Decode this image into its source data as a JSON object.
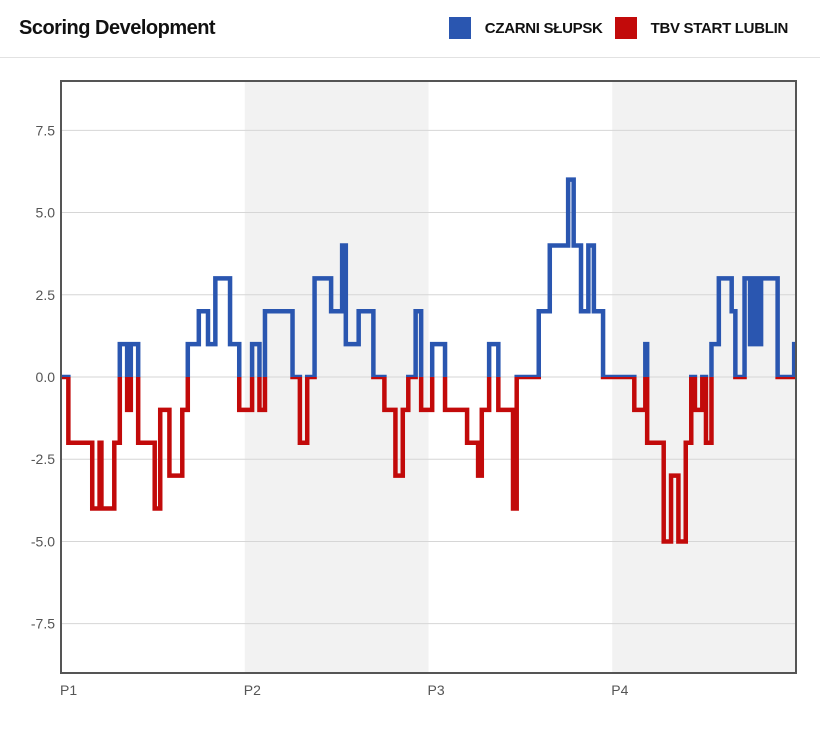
{
  "header": {
    "title": "Scoring Development",
    "legend": [
      {
        "label": "CZARNI SŁUPSK",
        "color": "#2a56b0"
      },
      {
        "label": "TBV START LUBLIN",
        "color": "#c20a0a"
      }
    ]
  },
  "chart_data": {
    "type": "line",
    "title": "Scoring Development",
    "xlabel": "",
    "ylabel": "",
    "y_ticks": [
      7.5,
      5.0,
      2.5,
      0.0,
      -2.5,
      -5.0,
      -7.5
    ],
    "y_tick_labels": [
      "7.5",
      "5.0",
      "2.5",
      "0.0",
      "-2.5",
      "-5.0",
      "-7.5"
    ],
    "ylim": [
      -9,
      9
    ],
    "xlim": [
      0,
      40
    ],
    "x_unit": "minutes",
    "periods": [
      {
        "label": "P1",
        "start": 0
      },
      {
        "label": "P2",
        "start": 10
      },
      {
        "label": "P3",
        "start": 20
      },
      {
        "label": "P4",
        "start": 30
      }
    ],
    "shaded_periods": [
      1,
      3
    ],
    "grid": true,
    "legend_position": "top-right",
    "series": [
      {
        "name": "score margin (CZARNI SŁUPSK minus TBV START LUBLIN)",
        "positive_color": "#2a56b0",
        "negative_color": "#c20a0a",
        "steps": [
          [
            0,
            0
          ],
          [
            0.4,
            -2
          ],
          [
            1.6,
            -2
          ],
          [
            1.7,
            -4
          ],
          [
            2.0,
            -4
          ],
          [
            2.1,
            -2
          ],
          [
            2.2,
            -4
          ],
          [
            2.9,
            -2
          ],
          [
            3.2,
            1
          ],
          [
            3.6,
            -1
          ],
          [
            3.8,
            1
          ],
          [
            4.2,
            -2
          ],
          [
            5.1,
            -4
          ],
          [
            5.4,
            -1
          ],
          [
            5.9,
            -3
          ],
          [
            6.6,
            -1
          ],
          [
            6.9,
            1
          ],
          [
            7.5,
            2
          ],
          [
            8.0,
            1
          ],
          [
            8.4,
            3
          ],
          [
            9.2,
            1
          ],
          [
            9.7,
            -1
          ],
          [
            10.4,
            1
          ],
          [
            10.8,
            -1
          ],
          [
            11.1,
            2
          ],
          [
            12.6,
            0
          ],
          [
            13.0,
            -2
          ],
          [
            13.4,
            0
          ],
          [
            13.8,
            3
          ],
          [
            14.7,
            2
          ],
          [
            15.3,
            4
          ],
          [
            15.5,
            1
          ],
          [
            16.2,
            2
          ],
          [
            17.0,
            0
          ],
          [
            17.6,
            -1
          ],
          [
            18.2,
            -3
          ],
          [
            18.6,
            -1
          ],
          [
            18.9,
            0
          ],
          [
            19.3,
            2
          ],
          [
            19.6,
            -1
          ],
          [
            20.2,
            1
          ],
          [
            20.9,
            -1
          ],
          [
            22.1,
            -2
          ],
          [
            22.7,
            -3
          ],
          [
            22.9,
            -1
          ],
          [
            23.3,
            1
          ],
          [
            23.8,
            -1
          ],
          [
            24.6,
            -4
          ],
          [
            24.8,
            0
          ],
          [
            26.0,
            2
          ],
          [
            26.6,
            4
          ],
          [
            27.6,
            6
          ],
          [
            27.9,
            4
          ],
          [
            28.3,
            2
          ],
          [
            28.7,
            4
          ],
          [
            29.0,
            2
          ],
          [
            29.5,
            0
          ],
          [
            31.2,
            -1
          ],
          [
            31.8,
            1
          ],
          [
            31.9,
            -2
          ],
          [
            32.8,
            -5
          ],
          [
            33.2,
            -3
          ],
          [
            33.6,
            -5
          ],
          [
            34.0,
            -2
          ],
          [
            34.3,
            0
          ],
          [
            34.5,
            -1
          ],
          [
            34.9,
            0
          ],
          [
            35.1,
            -2
          ],
          [
            35.4,
            1
          ],
          [
            35.8,
            3
          ],
          [
            36.5,
            2
          ],
          [
            36.7,
            0
          ],
          [
            37.2,
            3
          ],
          [
            37.5,
            1
          ],
          [
            37.7,
            3
          ],
          [
            37.9,
            1
          ],
          [
            38.1,
            3
          ],
          [
            39.0,
            0
          ],
          [
            39.9,
            1
          ],
          [
            40.0,
            1
          ]
        ]
      }
    ]
  }
}
